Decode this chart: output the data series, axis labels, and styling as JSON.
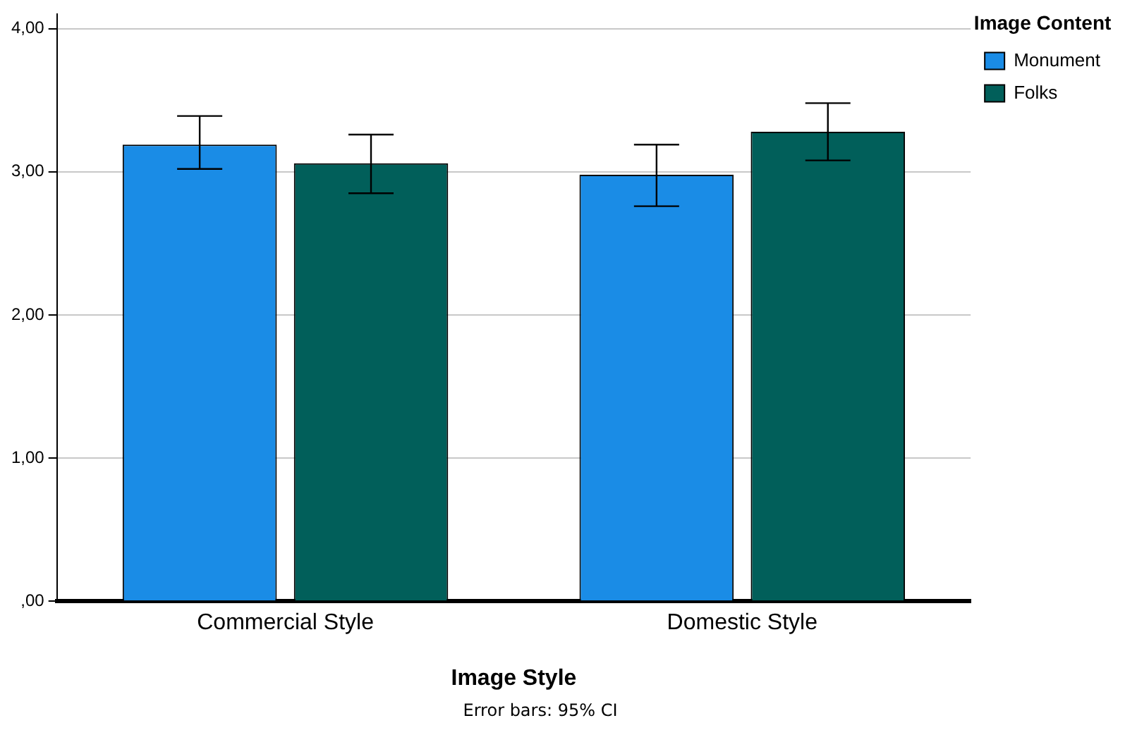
{
  "chart_data": {
    "type": "bar",
    "xlabel": "Image Style",
    "legend_title": "Image Content",
    "legend": "top right",
    "grid": "y",
    "categories": [
      "Commercial Style",
      "Domestic Style"
    ],
    "series": [
      {
        "name": "Monument",
        "color": "#1a8ce6",
        "values": [
          3.19,
          2.98
        ],
        "errors": [
          [
            3.02,
            3.39
          ],
          [
            2.76,
            3.19
          ]
        ]
      },
      {
        "name": "Folks",
        "color": "#015f5a",
        "values": [
          3.06,
          3.28
        ],
        "errors": [
          [
            2.85,
            3.26
          ],
          [
            3.08,
            3.48
          ]
        ]
      }
    ],
    "ylim": [
      0,
      4.1
    ],
    "yticks": [
      {
        "value": 0,
        "label": ",00"
      },
      {
        "value": 1,
        "label": "1,00"
      },
      {
        "value": 2,
        "label": "2,00"
      },
      {
        "value": 3,
        "label": "3,00"
      },
      {
        "value": 4,
        "label": "4,00"
      }
    ],
    "annotations": [
      "Error bars: 95% CI"
    ]
  }
}
